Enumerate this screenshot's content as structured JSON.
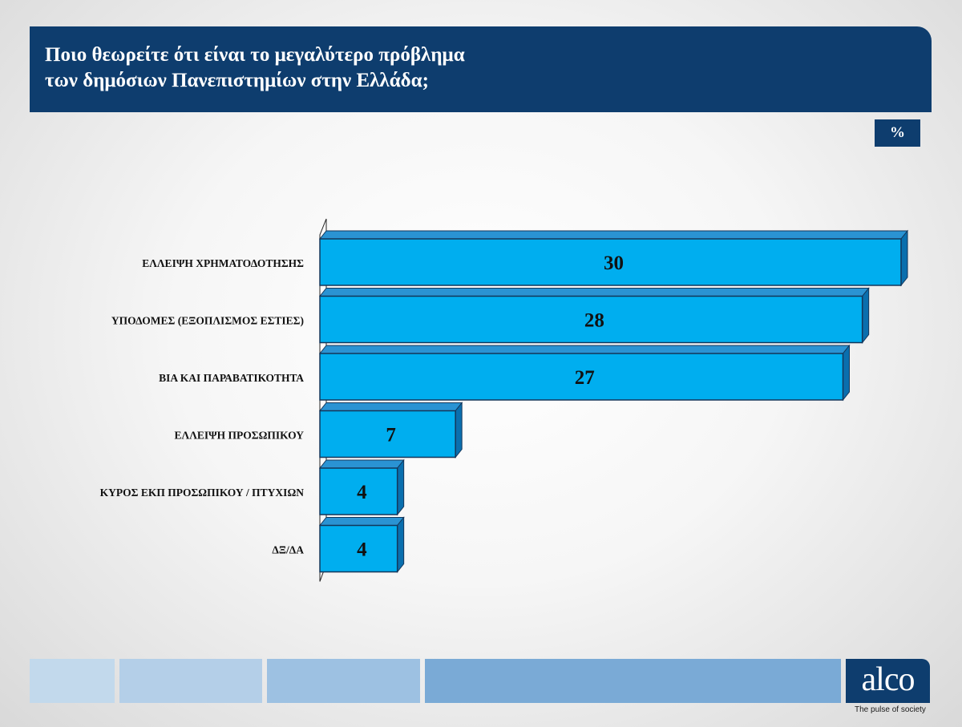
{
  "title": {
    "line1": "Ποιο θεωρείτε ότι είναι το μεγαλύτερο πρόβλημα",
    "line2": "των δημόσιων Πανεπιστημίων στην Ελλάδα;"
  },
  "unit_badge": "%",
  "chart_data": {
    "type": "bar",
    "orientation": "horizontal",
    "categories": [
      "ΕΛΛΕΙΨΗ ΧΡΗΜΑΤΟΔΟΤΗΣΗΣ",
      "ΥΠΟΔΟΜΕΣ (ΕΞΟΠΛΙΣΜΟΣ ΕΣΤΙΕΣ)",
      "ΒΙΑ ΚΑΙ ΠΑΡΑΒΑΤΙΚΟΤΗΤΑ",
      "ΕΛΛΕΙΨΗ ΠΡΟΣΩΠΙΚΟΥ",
      "ΚΥΡΟΣ ΕΚΠ ΠΡΟΣΩΠΙΚΟΥ / ΠΤΥΧΙΩΝ",
      "ΔΞ/ΔΑ"
    ],
    "values": [
      30,
      28,
      27,
      7,
      4,
      4
    ],
    "title": "",
    "xlabel": "",
    "ylabel": "",
    "xlim": [
      0,
      30
    ],
    "grid": false,
    "legend": "none",
    "colors": {
      "bar_front": "#00aeef",
      "bar_top": "#2a93d3",
      "bar_side": "#0a6fae"
    }
  },
  "footer": {
    "colors": [
      "#c2d9ec",
      "#b4cfe8",
      "#9dc1e2",
      "#7aaad6"
    ],
    "logo": "alco",
    "tagline": "The pulse of society",
    "logo_color": "#0e3d6e"
  }
}
